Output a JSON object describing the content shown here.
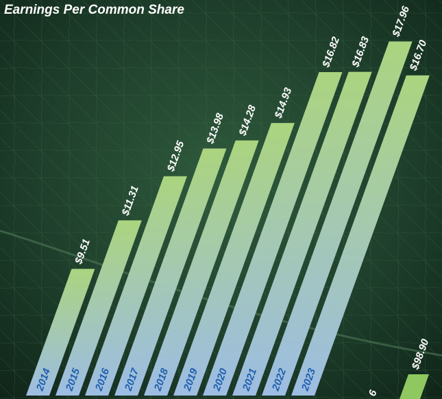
{
  "chart_data": [
    {
      "type": "slanted-bar",
      "title": "Earnings Per Common Share",
      "categories": [
        "2014",
        "2015",
        "2016",
        "2017",
        "2018",
        "2019",
        "2020",
        "2021",
        "2022",
        "2023"
      ],
      "values": [
        9.51,
        11.31,
        12.95,
        13.98,
        14.28,
        14.93,
        16.82,
        16.83,
        17.96,
        16.7
      ],
      "value_labels": [
        "$9.51",
        "$11.31",
        "$12.95",
        "$13.98",
        "$14.28",
        "$14.93",
        "$16.82",
        "$16.83",
        "$17.96",
        "$16.70"
      ],
      "ylim": [
        4.8,
        19.5
      ],
      "color": "#a9d384"
    },
    {
      "type": "slanted-bar",
      "values": [
        98.9
      ],
      "value_labels": [
        "$98.90"
      ],
      "annotations": [
        "6"
      ],
      "ylim": [
        98,
        99
      ],
      "color": "#8fc860"
    }
  ]
}
